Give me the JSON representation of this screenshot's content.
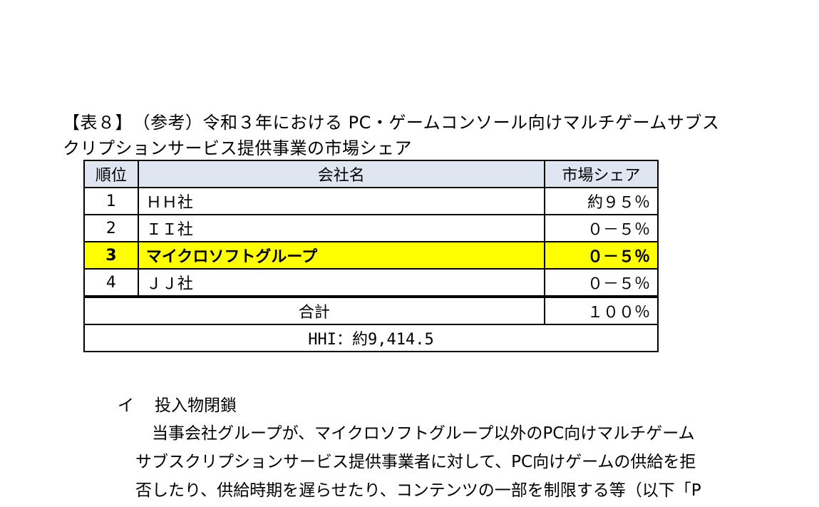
{
  "caption": {
    "line1": "【表８】　（参考）令和３年における PC・ゲームコンソール向けマルチゲームサブス",
    "line2": "クリプションサービス提供事業の市場シェア"
  },
  "table": {
    "headers": [
      "順位",
      "会社名",
      "市場シェア"
    ],
    "rows": [
      {
        "rank": "1",
        "company": "ＨＨ社",
        "share": "約９５％"
      },
      {
        "rank": "2",
        "company": "ＩＩ社",
        "share": "０－５％"
      },
      {
        "rank": "3",
        "company": "マイクロソフトグループ",
        "share": "０－５％"
      },
      {
        "rank": "4",
        "company": "ＪＪ社",
        "share": "０－５％"
      }
    ],
    "total_label": "合計",
    "total_value": "１００％",
    "hhi": "HHI：約9,414.5",
    "highlight_color": "#ffff00",
    "header_color": "#dfe6f2"
  },
  "section": {
    "mark": "イ",
    "title": "投入物閉鎖"
  },
  "body": {
    "lines": [
      "　当事会社グループが、マイクロソフトグループ以外のPC向けマルチゲーム",
      "サブスクリプションサービス提供事業者に対して、PC向けゲームの供給を拒",
      "否したり、供給時期を遅らせたり、コンテンツの一部を制限する等（以下「P"
    ]
  }
}
